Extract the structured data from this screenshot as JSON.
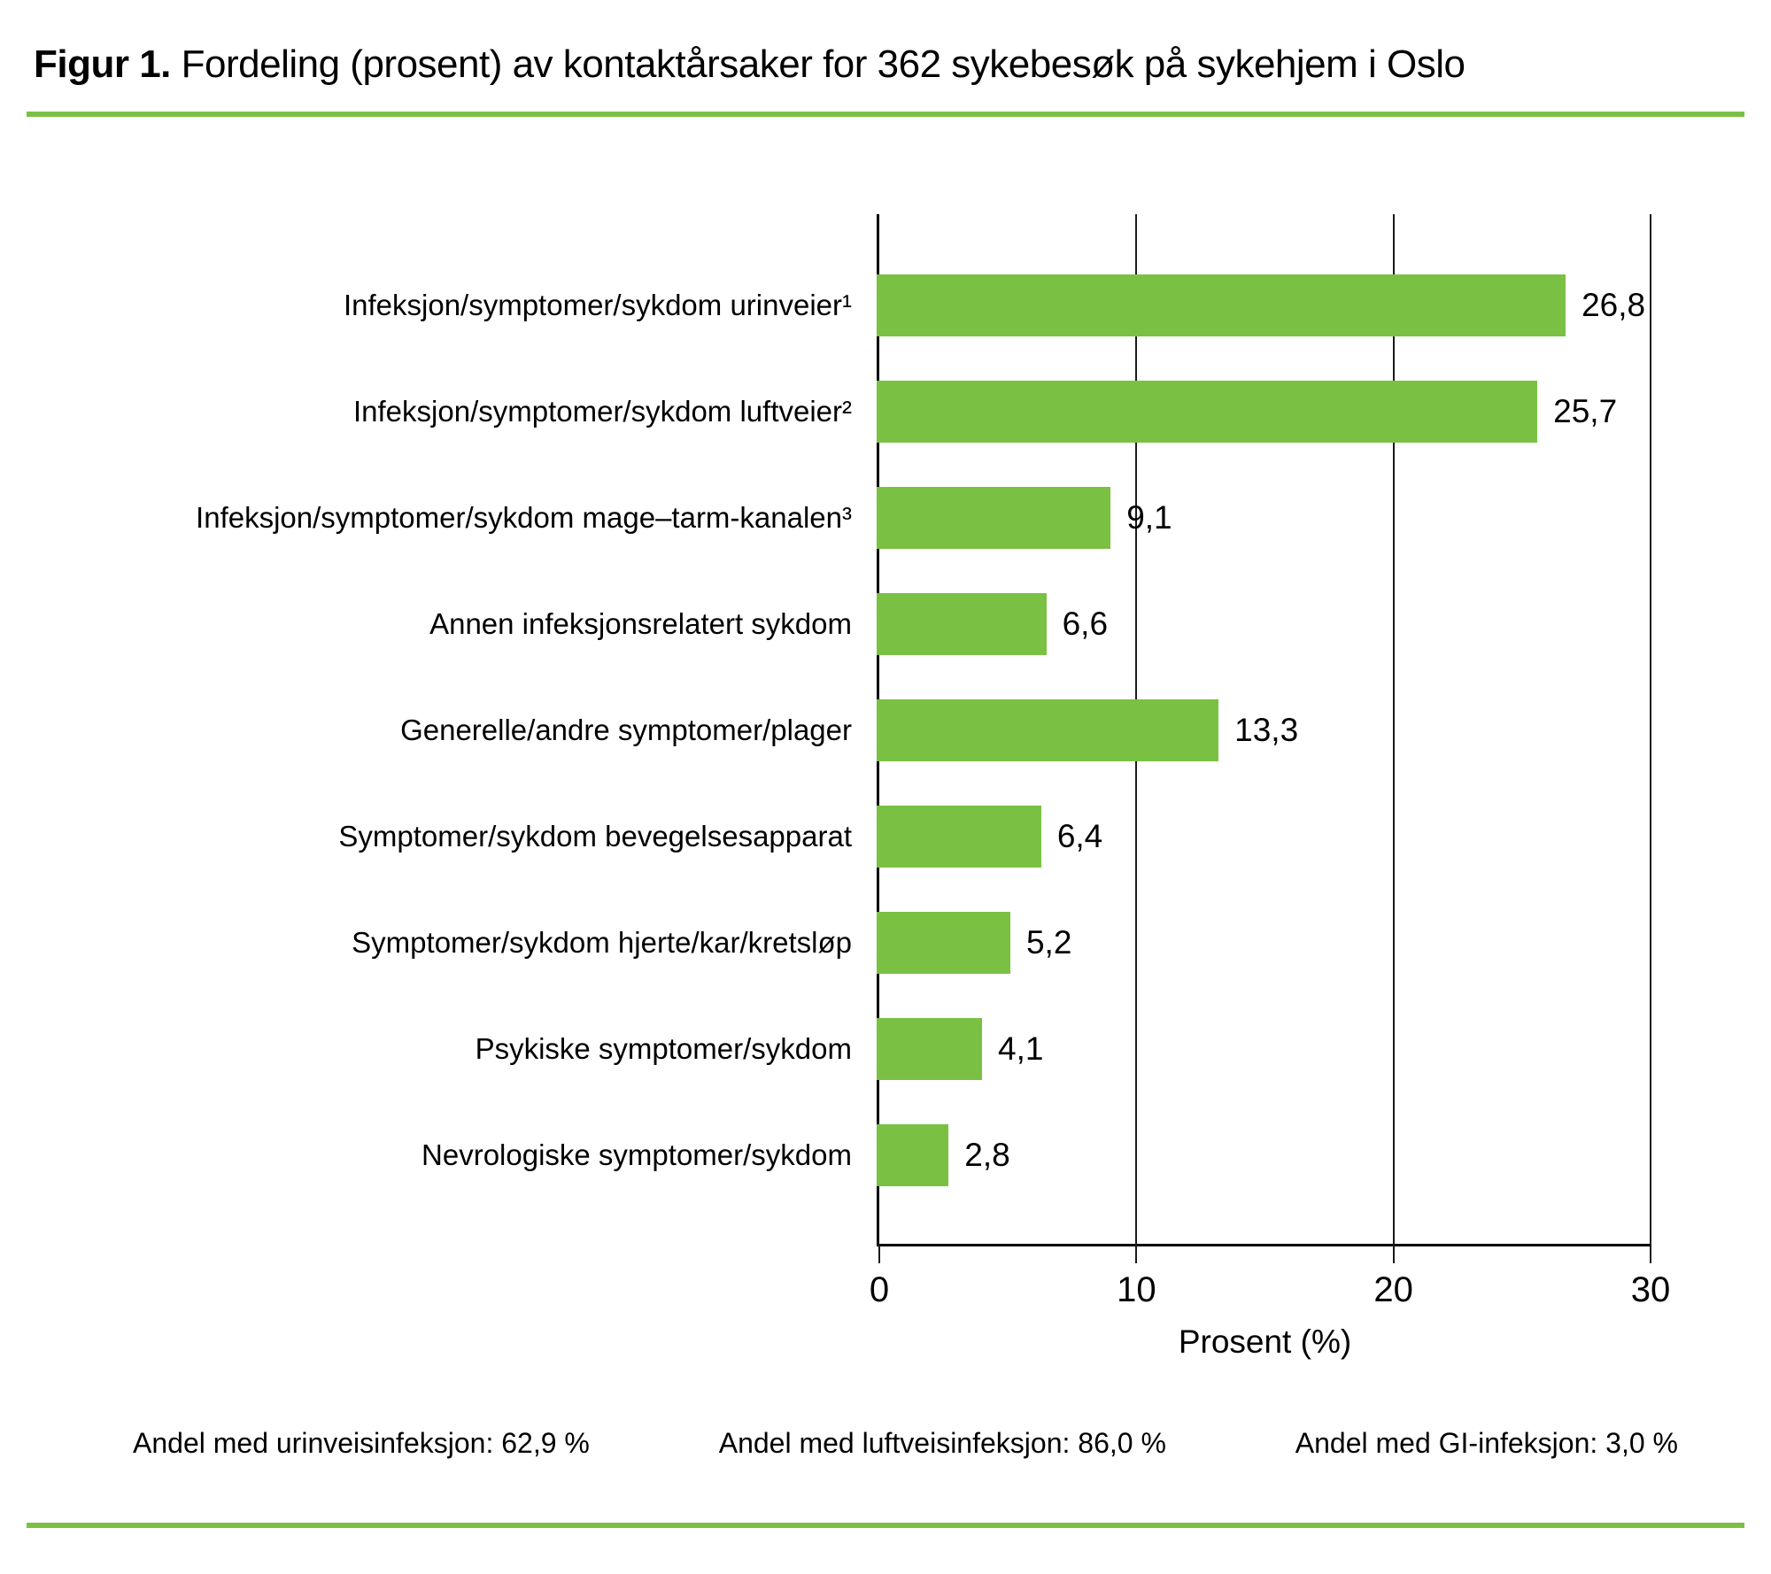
{
  "title": {
    "prefix": "Figur 1.",
    "text": " Fordeling (prosent) av kontaktårsaker for 362 sykebesøk på sykehjem i Oslo"
  },
  "colors": {
    "bar": "#7ac143",
    "rule": "#7ac143",
    "grid": "#1a1a1a",
    "text": "#000000"
  },
  "chart_data": {
    "type": "bar",
    "orientation": "horizontal",
    "categories": [
      "Infeksjon/symptomer/sykdom urinveier¹",
      "Infeksjon/symptomer/sykdom luftveier²",
      "Infeksjon/symptomer/sykdom mage–tarm-kanalen³",
      "Annen infeksjonsrelatert sykdom",
      "Generelle/andre symptomer/plager",
      "Symptomer/sykdom bevegelsesapparat",
      "Symptomer/sykdom hjerte/kar/kretsløp",
      "Psykiske symptomer/sykdom",
      "Nevrologiske symptomer/sykdom"
    ],
    "values": [
      26.8,
      25.7,
      9.1,
      6.6,
      13.3,
      6.4,
      5.2,
      4.1,
      2.8
    ],
    "value_labels": [
      "26,8",
      "25,7",
      "9,1",
      "6,6",
      "13,3",
      "6,4",
      "5,2",
      "4,1",
      "2,8"
    ],
    "xlabel": "Prosent (%)",
    "xlim": [
      0,
      30
    ],
    "xticks": [
      0,
      10,
      20,
      30
    ],
    "xtick_labels": [
      "0",
      "10",
      "20",
      "30"
    ],
    "grid": true,
    "legend": false
  },
  "footnotes": [
    "Andel med urinveisinfeksjon: 62,9 %",
    "Andel med luftveisinfeksjon: 86,0 %",
    "Andel med GI-infeksjon: 3,0 %"
  ]
}
